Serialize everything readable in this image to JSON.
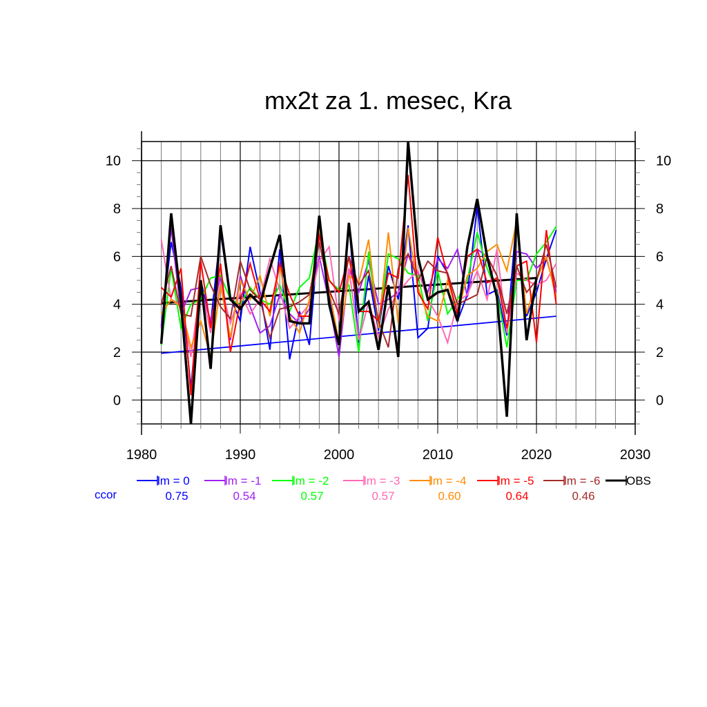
{
  "chart_data": {
    "type": "line",
    "title": "mx2t za 1. mesec, Kra",
    "xlabel": "",
    "ylabel": "",
    "xlim": [
      1980,
      2030
    ],
    "ylim": [
      -1.0,
      10.8
    ],
    "xticks": [
      1980,
      1990,
      2000,
      2010,
      2020,
      2030
    ],
    "yticks": [
      0,
      2,
      4,
      6,
      8,
      10
    ],
    "grid": true,
    "legend_position": "bottom",
    "ccor_label": "ccor",
    "x": [
      1982,
      1983,
      1984,
      1985,
      1986,
      1987,
      1988,
      1989,
      1990,
      1991,
      1992,
      1993,
      1994,
      1995,
      1996,
      1997,
      1998,
      1999,
      2000,
      2001,
      2002,
      2003,
      2004,
      2005,
      2006,
      2007,
      2008,
      2009,
      2010,
      2011,
      2012,
      2013,
      2014,
      2015,
      2016,
      2017,
      2018,
      2019,
      2020,
      2021,
      2022
    ],
    "series": [
      {
        "name": "lm = 0",
        "color": "#0000ff",
        "ccor": "0.75",
        "values": [
          3.1,
          6.6,
          4.7,
          0.5,
          5.0,
          3.2,
          7.0,
          4.3,
          3.3,
          6.4,
          4.5,
          2.1,
          6.3,
          1.7,
          3.7,
          2.3,
          7.2,
          4.4,
          2.4,
          7.4,
          2.4,
          5.2,
          2.9,
          5.6,
          4.2,
          7.3,
          2.6,
          3.0,
          6.0,
          5.3,
          3.3,
          4.4,
          8.1,
          4.4,
          4.6,
          2.7,
          7.7,
          3.5,
          4.5,
          5.9,
          7.1
        ]
      },
      {
        "name": "lm = -1",
        "color": "#a020f0",
        "ccor": "0.54",
        "values": [
          3.0,
          7.2,
          3.6,
          4.6,
          4.7,
          3.3,
          5.2,
          2.5,
          5.2,
          3.9,
          2.8,
          3.1,
          4.4,
          3.6,
          3.2,
          3.8,
          6.0,
          4.1,
          1.8,
          5.5,
          4.5,
          5.8,
          4.0,
          4.2,
          4.5,
          6.1,
          5.3,
          4.5,
          5.9,
          5.5,
          6.3,
          4.3,
          6.3,
          6.0,
          5.2,
          2.9,
          6.2,
          6.1,
          5.5,
          5.9,
          4.5
        ]
      },
      {
        "name": "lm = -2",
        "color": "#00ff00",
        "ccor": "0.57",
        "values": [
          2.3,
          5.5,
          3.0,
          4.0,
          4.2,
          5.1,
          5.2,
          4.2,
          4.0,
          4.7,
          4.2,
          4.0,
          4.8,
          3.7,
          4.7,
          5.1,
          7.2,
          5.0,
          4.6,
          4.8,
          2.0,
          6.2,
          3.0,
          6.1,
          5.9,
          5.3,
          5.2,
          3.3,
          5.4,
          3.6,
          4.2,
          5.0,
          7.0,
          5.5,
          4.5,
          2.2,
          5.0,
          5.0,
          6.1,
          6.6,
          7.25
        ]
      },
      {
        "name": "lm = -3",
        "color": "#ff69b4",
        "ccor": "0.57",
        "values": [
          6.7,
          4.2,
          4.0,
          1.8,
          4.8,
          2.8,
          4.9,
          3.2,
          4.5,
          3.6,
          4.2,
          5.9,
          4.6,
          3.0,
          3.5,
          4.0,
          5.8,
          6.4,
          3.3,
          5.5,
          2.5,
          4.1,
          2.6,
          3.8,
          4.5,
          5.0,
          5.4,
          4.2,
          3.5,
          2.4,
          4.1,
          4.4,
          5.4,
          4.2,
          6.3,
          2.8,
          5.3,
          5.0,
          4.8,
          5.0,
          5.7
        ]
      },
      {
        "name": "lm = -4",
        "color": "#ff8c00",
        "ccor": "0.60",
        "values": [
          3.6,
          4.2,
          3.9,
          2.2,
          3.3,
          1.8,
          4.8,
          2.6,
          5.0,
          4.2,
          5.2,
          3.5,
          5.6,
          3.5,
          2.8,
          4.2,
          7.2,
          4.6,
          2.4,
          5.2,
          4.9,
          6.7,
          3.0,
          7.0,
          3.2,
          7.2,
          4.7,
          3.5,
          3.3,
          5.0,
          3.6,
          5.2,
          5.5,
          6.2,
          6.5,
          5.4,
          7.5,
          3.6,
          5.0,
          6.0,
          4.3
        ]
      },
      {
        "name": "lm = -5",
        "color": "#ff0000",
        "ccor": "0.64",
        "values": [
          4.7,
          4.3,
          5.5,
          0.2,
          5.8,
          3.0,
          5.7,
          2.0,
          4.1,
          5.7,
          4.2,
          3.7,
          5.7,
          4.4,
          3.5,
          3.5,
          6.9,
          5.0,
          4.5,
          6.0,
          3.7,
          3.7,
          3.3,
          5.3,
          5.1,
          9.4,
          4.5,
          3.8,
          6.8,
          5.2,
          3.6,
          6.0,
          6.3,
          4.9,
          5.1,
          3.0,
          5.6,
          5.8,
          2.4,
          7.1,
          4.0
        ]
      },
      {
        "name": "lm = -6",
        "color": "#a52a2a",
        "ccor": "0.46",
        "values": [
          4.0,
          5.6,
          3.6,
          3.5,
          6.0,
          4.8,
          3.9,
          3.4,
          5.8,
          4.6,
          4.2,
          2.6,
          3.8,
          3.9,
          4.1,
          4.4,
          6.6,
          4.6,
          3.6,
          6.0,
          4.8,
          5.4,
          3.3,
          2.2,
          5.5,
          6.1,
          5.0,
          5.8,
          5.4,
          5.3,
          4.0,
          4.2,
          4.4,
          6.0,
          5.2,
          3.6,
          5.6,
          4.5,
          5.0,
          6.5,
          4.7
        ]
      },
      {
        "name": "OBS",
        "color": "#000000",
        "ccor": "",
        "values": [
          2.35,
          7.8,
          4.1,
          -1.0,
          5.0,
          1.3,
          7.3,
          4.2,
          3.8,
          4.4,
          4.0,
          5.5,
          6.9,
          3.3,
          3.2,
          3.2,
          7.7,
          4.0,
          2.3,
          7.4,
          3.7,
          4.1,
          2.1,
          4.8,
          1.8,
          10.8,
          6.0,
          4.2,
          4.5,
          4.6,
          3.3,
          6.4,
          8.4,
          6.0,
          4.3,
          -0.7,
          7.8,
          2.5,
          5.1,
          null,
          null
        ]
      }
    ],
    "trend_lines": [
      {
        "name": "lm = 0 trend",
        "color": "#0000ff",
        "x": [
          1982,
          2022
        ],
        "y": [
          1.95,
          3.5
        ]
      },
      {
        "name": "OBS trend",
        "color": "#000000",
        "x": [
          1982,
          2020
        ],
        "y": [
          4.05,
          5.1
        ]
      }
    ]
  }
}
